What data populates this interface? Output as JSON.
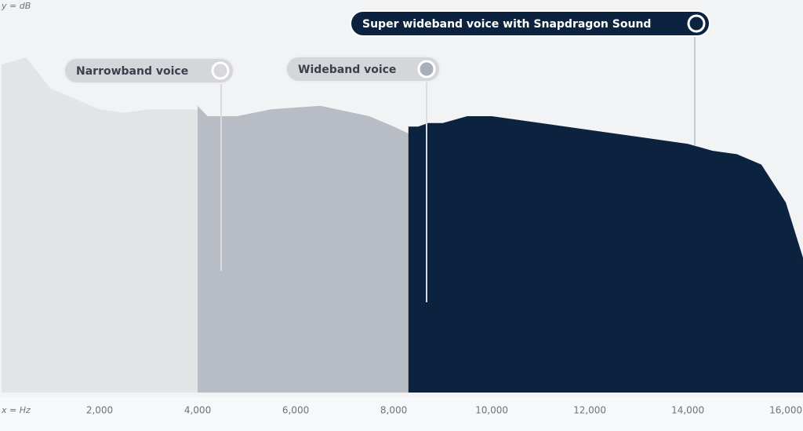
{
  "chart_data": {
    "type": "area",
    "x_label": "x = Hz",
    "y_label": "y = dB",
    "x": [
      0,
      500,
      1000,
      1500,
      2000,
      2500,
      3000,
      3500,
      4000,
      4200,
      4400,
      4800,
      5500,
      6500,
      7500,
      8000,
      8300,
      8500,
      8700,
      9000,
      9500,
      10000,
      11000,
      12000,
      13000,
      14000,
      14500,
      15000,
      15500,
      16000,
      16350
    ],
    "xlim": [
      0,
      16350
    ],
    "xticks": [
      {
        "value": 2000,
        "label": "2,000"
      },
      {
        "value": 4000,
        "label": "4,000"
      },
      {
        "value": 6000,
        "label": "6,000"
      },
      {
        "value": 8000,
        "label": "8,000"
      },
      {
        "value": 10000,
        "label": "10,000"
      },
      {
        "value": 12000,
        "label": "12,000"
      },
      {
        "value": 14000,
        "label": "14,000"
      },
      {
        "value": 16000,
        "label": "16,000"
      }
    ],
    "ylim": [
      0,
      100
    ],
    "series": [
      {
        "name": "Narrowband voice",
        "color": "#e3e4e6",
        "values": [
          95,
          97,
          88,
          85,
          82,
          81,
          82,
          82,
          82,
          57,
          39,
          27,
          18,
          12,
          9,
          7,
          6,
          5,
          3,
          2,
          1,
          1,
          null,
          null,
          null,
          null,
          null,
          null,
          null,
          null,
          null
        ]
      },
      {
        "name": "Wideband voice",
        "color": "#b8bdc5",
        "values": [
          null,
          null,
          null,
          null,
          null,
          null,
          null,
          null,
          83,
          80,
          80,
          80,
          82,
          83,
          80,
          77,
          75,
          45,
          27,
          18,
          11,
          8,
          5,
          2,
          1,
          1,
          null,
          null,
          null,
          null,
          null
        ]
      },
      {
        "name": "Super wideband voice with Snapdragon Sound",
        "color": "#0c2340",
        "values": [
          null,
          null,
          null,
          null,
          null,
          null,
          null,
          null,
          null,
          null,
          null,
          null,
          null,
          null,
          null,
          null,
          77,
          77,
          78,
          78,
          80,
          80,
          78,
          76,
          74,
          72,
          70,
          69,
          66,
          55,
          39
        ]
      }
    ]
  }
}
